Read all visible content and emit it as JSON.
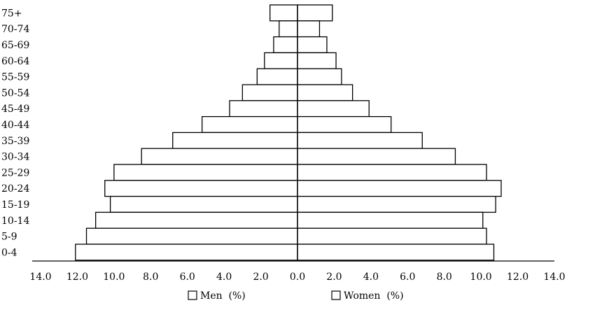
{
  "chart_data": {
    "type": "bar",
    "orientation": "horizontal-population-pyramid",
    "categories": [
      "75+",
      "70-74",
      "65-69",
      "60-64",
      "55-59",
      "50-54",
      "45-49",
      "40-44",
      "35-39",
      "30-34",
      "25-29",
      "20-24",
      "15-19",
      "10-14",
      "5-9",
      "0-4"
    ],
    "series": [
      {
        "name": "Men  (%)",
        "side": "left",
        "values": [
          1.5,
          1.0,
          1.3,
          1.8,
          2.2,
          3.0,
          3.7,
          5.2,
          6.8,
          8.5,
          10.0,
          10.5,
          10.2,
          11.0,
          11.5,
          12.1
        ]
      },
      {
        "name": "Women  (%)",
        "side": "right",
        "values": [
          1.9,
          1.2,
          1.6,
          2.1,
          2.4,
          3.0,
          3.9,
          5.1,
          6.8,
          8.6,
          10.3,
          11.1,
          10.8,
          10.1,
          10.3,
          10.7
        ]
      }
    ],
    "xlim": [
      -14,
      14
    ],
    "x_tick_values": [
      -14,
      -12,
      -10,
      -8,
      -6,
      -4,
      -2,
      0,
      2,
      4,
      6,
      8,
      10,
      12,
      14
    ],
    "x_tick_labels": [
      "14.0",
      "12.0",
      "10.0",
      "8.0",
      "6.0",
      "4.0",
      "2.0",
      "0.0",
      "2.0",
      "4.0",
      "6.0",
      "8.0",
      "10.0",
      "12.0",
      "14.0"
    ],
    "title": "",
    "xlabel": "",
    "ylabel": "",
    "grid": false,
    "legend_placement": "bottom-center",
    "bar_fill": "#ffffff",
    "bar_stroke": "#000000"
  }
}
